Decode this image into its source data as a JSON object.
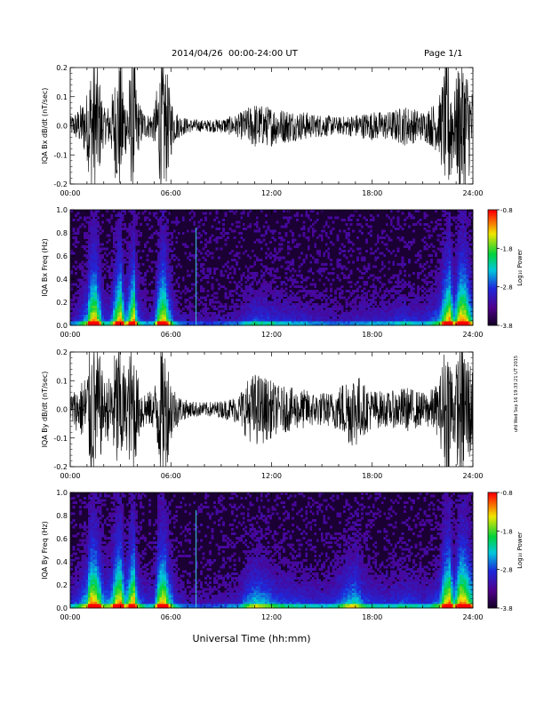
{
  "header": {
    "title": "2014/04/26  00:00-24:00 UT",
    "page": "Page 1/1"
  },
  "footer": {
    "xlabel": "Universal Time (hh:mm)"
  },
  "side_label": "ufd Wed Sep 16 19:33:21 UT 2015",
  "colors": {
    "trace": "#000000",
    "spectrogram_low": "#1a0033",
    "spectrogram_high": "#ff0000"
  },
  "chart_data": [
    {
      "type": "line",
      "ylabel": "IQA Bx dB/dt (nT/sec)",
      "x_ticks": [
        "00:00",
        "06:00",
        "12:00",
        "18:00",
        "24:00"
      ],
      "y_ticks": [
        "0.2",
        "0.1",
        "0.0",
        "-0.1",
        "-0.2"
      ],
      "xlim": [
        0,
        24
      ],
      "ylim": [
        -0.2,
        0.2
      ],
      "envelope": {
        "hours": [
          0,
          0.5,
          1,
          1.2,
          1.5,
          1.8,
          2,
          2.4,
          2.8,
          3,
          3.3,
          3.6,
          3.8,
          4,
          4.3,
          4.6,
          5,
          5.3,
          5.6,
          5.9,
          6.2,
          6.5,
          7,
          8,
          9,
          10,
          10.5,
          11,
          11.5,
          12,
          12.5,
          13,
          13.5,
          14,
          14.5,
          15,
          16,
          17,
          18,
          19,
          19.5,
          20,
          20.5,
          21,
          21.5,
          22,
          22.3,
          22.6,
          22.9,
          23.2,
          23.5,
          24
        ],
        "amplitude": [
          0.03,
          0.06,
          0.12,
          0.22,
          0.25,
          0.15,
          0.06,
          0.08,
          0.22,
          0.25,
          0.1,
          0.2,
          0.25,
          0.1,
          0.06,
          0.04,
          0.06,
          0.2,
          0.25,
          0.14,
          0.06,
          0.04,
          0.025,
          0.02,
          0.025,
          0.04,
          0.06,
          0.08,
          0.07,
          0.07,
          0.06,
          0.06,
          0.05,
          0.05,
          0.04,
          0.04,
          0.03,
          0.04,
          0.05,
          0.05,
          0.06,
          0.07,
          0.06,
          0.05,
          0.07,
          0.1,
          0.2,
          0.25,
          0.12,
          0.25,
          0.25,
          0.12
        ]
      }
    },
    {
      "type": "heatmap",
      "ylabel": "IQA Bx Freq (Hz)",
      "x_ticks": [
        "00:00",
        "06:00",
        "12:00",
        "18:00",
        "24:00"
      ],
      "y_ticks": [
        "1.0",
        "0.8",
        "0.6",
        "0.4",
        "0.2",
        "0.0"
      ],
      "xlim": [
        0,
        24
      ],
      "ylim": [
        0,
        1
      ],
      "colorbar": {
        "label": "Log₁₀ Power",
        "ticks": [
          "-0.8",
          "-1.8",
          "-2.8",
          "-3.8"
        ],
        "range": [
          -3.8,
          -0.8
        ]
      }
    },
    {
      "type": "line",
      "ylabel": "IQA By dB/dt (nT/sec)",
      "x_ticks": [
        "00:00",
        "06:00",
        "12:00",
        "18:00",
        "24:00"
      ],
      "y_ticks": [
        "0.2",
        "0.1",
        "0.0",
        "-0.1",
        "-0.2"
      ],
      "xlim": [
        0,
        24
      ],
      "ylim": [
        -0.2,
        0.2
      ],
      "envelope": {
        "hours": [
          0,
          0.5,
          1,
          1.2,
          1.5,
          1.8,
          2,
          2.4,
          2.8,
          3,
          3.3,
          3.6,
          3.8,
          4,
          4.3,
          4.6,
          5,
          5.3,
          5.6,
          5.9,
          6.2,
          6.5,
          7,
          8,
          9,
          10,
          10.5,
          11,
          11.5,
          12,
          12.5,
          13,
          13.5,
          14,
          14.5,
          15,
          15.5,
          16,
          16.5,
          17,
          17.5,
          18,
          19,
          19.5,
          20,
          20.5,
          21,
          21.5,
          22,
          22.3,
          22.6,
          22.9,
          23.2,
          23.5,
          24
        ],
        "amplitude": [
          0.06,
          0.08,
          0.14,
          0.25,
          0.25,
          0.18,
          0.1,
          0.12,
          0.25,
          0.25,
          0.12,
          0.22,
          0.25,
          0.12,
          0.08,
          0.06,
          0.07,
          0.22,
          0.25,
          0.15,
          0.08,
          0.05,
          0.03,
          0.025,
          0.03,
          0.05,
          0.1,
          0.13,
          0.12,
          0.1,
          0.08,
          0.08,
          0.07,
          0.07,
          0.06,
          0.06,
          0.06,
          0.08,
          0.12,
          0.14,
          0.09,
          0.07,
          0.06,
          0.07,
          0.08,
          0.07,
          0.06,
          0.07,
          0.1,
          0.22,
          0.25,
          0.12,
          0.25,
          0.25,
          0.15
        ]
      }
    },
    {
      "type": "heatmap",
      "ylabel": "IQA By Freq (Hz)",
      "x_ticks": [
        "00:00",
        "06:00",
        "12:00",
        "18:00",
        "24:00"
      ],
      "y_ticks": [
        "1.0",
        "0.8",
        "0.6",
        "0.4",
        "0.2",
        "0.0"
      ],
      "xlim": [
        0,
        24
      ],
      "ylim": [
        0,
        1
      ],
      "colorbar": {
        "label": "Log₁₀ Power",
        "ticks": [
          "-0.8",
          "-1.8",
          "-2.8",
          "-3.8"
        ],
        "range": [
          -3.8,
          -0.8
        ]
      }
    }
  ]
}
